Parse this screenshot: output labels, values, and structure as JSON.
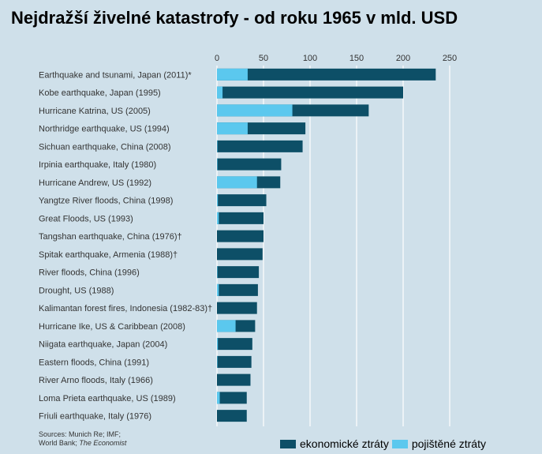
{
  "title": "Nejdražší živelné katastrofy - od roku 1965 v mld. USD",
  "sources": {
    "line1": "Sources: Munich Re; IMF;",
    "line2_prefix": "World Bank; ",
    "line2_italic": "The Economist"
  },
  "colors": {
    "economic": "#0d4f67",
    "insured": "#5bc8ee",
    "background": "#cfe0ea",
    "gridline": "#ffffff"
  },
  "chart_data": {
    "type": "bar",
    "orientation": "horizontal",
    "stacked": "overlay",
    "title": "Nejdražší živelné katastrofy - od roku 1965 v mld. USD",
    "xlim": [
      0,
      250
    ],
    "xticks": [
      0,
      50,
      100,
      150,
      200,
      250
    ],
    "xaxis_position": "top",
    "grid": true,
    "legend_position": "bottom-right",
    "categories": [
      "Earthquake and tsunami, Japan (2011)*",
      "Kobe earthquake, Japan (1995)",
      "Hurricane Katrina, US (2005)",
      "Northridge earthquake, US (1994)",
      "Sichuan earthquake, China (2008)",
      "Irpinia earthquake, Italy (1980)",
      "Hurricane Andrew, US (1992)",
      "Yangtze River floods, China (1998)",
      "Great Floods, US (1993)",
      "Tangshan earthquake, China (1976)†",
      "Spitak earthquake, Armenia (1988)†",
      "River floods, China (1996)",
      "Drought, US (1988)",
      "Kalimantan forest fires, Indonesia (1982-83)†",
      "Hurricane Ike, US & Caribbean (2008)",
      "Niigata earthquake, Japan (2004)",
      "Eastern floods, China (1991)",
      "River Arno floods, Italy (1966)",
      "Loma Prieta earthquake, US (1989)",
      "Friuli earthquake, Italy (1976)"
    ],
    "series": [
      {
        "name": "ekonomické ztráty",
        "color": "#0d4f67",
        "values": [
          235,
          200,
          163,
          95,
          92,
          69,
          68,
          53,
          50,
          50,
          49,
          45,
          44,
          43,
          41,
          38,
          37,
          36,
          32,
          32
        ]
      },
      {
        "name": "pojištěné ztráty",
        "color": "#5bc8ee",
        "values": [
          33,
          6,
          81,
          33,
          0.5,
          0.5,
          43,
          1,
          2,
          0,
          0,
          0.5,
          2,
          0,
          20,
          1,
          0.5,
          0,
          3,
          0
        ]
      }
    ]
  }
}
